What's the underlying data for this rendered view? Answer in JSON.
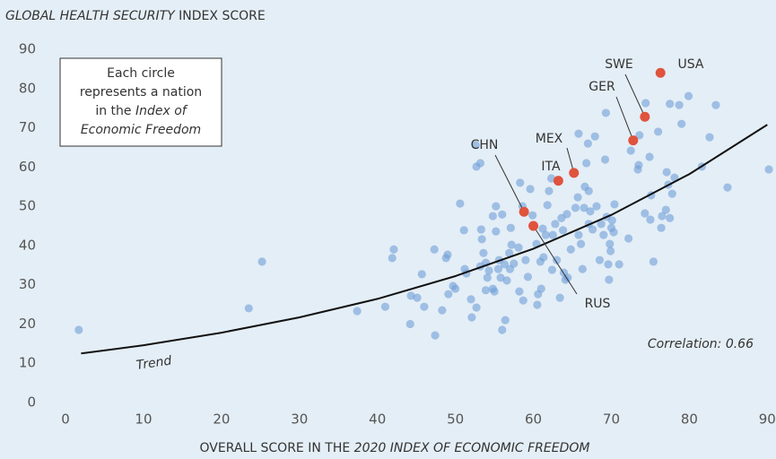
{
  "chart_data": {
    "type": "scatter",
    "title": [
      {
        "text": "GLOBAL HEALTH SECURITY",
        "italic": true
      },
      {
        "text": " INDEX SCORE",
        "italic": false
      }
    ],
    "x_label": [
      {
        "text": "OVERALL SCORE IN THE ",
        "italic": false
      },
      {
        "text": "2020 INDEX OF ECONOMIC FREEDOM",
        "italic": true
      }
    ],
    "note": [
      [
        {
          "text": "Each circle",
          "italic": false
        }
      ],
      [
        {
          "text": "represents a nation",
          "italic": false
        }
      ],
      [
        {
          "text": "in the ",
          "italic": false
        },
        {
          "text": "Index of",
          "italic": true
        }
      ],
      [
        {
          "text": "Economic Freedom",
          "italic": true
        }
      ]
    ],
    "annotation": "Correlation: 0.66",
    "xlim": [
      -1.5,
      91
    ],
    "ylim": [
      0,
      90
    ],
    "xticks": [
      0,
      10,
      20,
      30,
      40,
      50,
      60,
      70,
      80,
      90
    ],
    "yticks": [
      0,
      10,
      20,
      30,
      40,
      50,
      60,
      70,
      80,
      90
    ],
    "grid": false,
    "points": {
      "color": "#6f9fd8",
      "x": [
        1.7,
        23.5,
        25.2,
        37.4,
        41,
        41.9,
        42.1,
        44.2,
        44.3,
        45.1,
        45.7,
        46,
        47.4,
        47.3,
        48.3,
        48.8,
        49,
        49.1,
        49.7,
        50,
        50.6,
        51.1,
        51.2,
        51.4,
        52,
        52.1,
        52.6,
        52.7,
        53.2,
        52.7,
        53.2,
        53.3,
        53.4,
        53.6,
        53.9,
        53.9,
        54.1,
        54.3,
        54.8,
        54.8,
        55,
        55.2,
        55.2,
        55.5,
        55.6,
        55.8,
        56,
        56,
        56.3,
        56.4,
        56.6,
        56.9,
        57,
        57.1,
        57.2,
        57.5,
        58.1,
        58.2,
        58.3,
        58.6,
        58.7,
        59,
        59.3,
        59.6,
        59.9,
        60.4,
        60.5,
        60.6,
        61,
        60.9,
        61.2,
        61.3,
        61.6,
        61.8,
        62,
        62.3,
        62.4,
        62.5,
        62.8,
        63,
        63.4,
        63.6,
        63.8,
        63.9,
        64.1,
        64.3,
        64.4,
        64.8,
        65.4,
        65.7,
        65.8,
        65.8,
        66.1,
        66.3,
        66.5,
        66.6,
        66.8,
        67,
        67.1,
        67.1,
        67.3,
        67.6,
        67.9,
        68.1,
        68.5,
        68.7,
        69,
        69.2,
        69.3,
        69.4,
        69.6,
        69.7,
        69.8,
        69.9,
        70,
        70.1,
        70.3,
        70.4,
        71,
        72.2,
        72.5,
        73.4,
        73.5,
        73.6,
        74.3,
        74.4,
        74.9,
        75,
        75.1,
        75.4,
        76,
        76.4,
        76.5,
        77,
        77.1,
        77.3,
        77.5,
        77.5,
        77.8,
        78.1,
        78.7,
        79,
        79.9,
        81.6,
        82.6,
        83.4,
        84.9,
        90.2
      ],
      "y": [
        18.5,
        24,
        35.9,
        23.3,
        24.4,
        36.8,
        39,
        20,
        27.2,
        26.7,
        32.7,
        24.4,
        17.1,
        39,
        23.5,
        36.8,
        37.7,
        27.6,
        29.7,
        29,
        50.7,
        43.9,
        34,
        32.9,
        26.3,
        21.7,
        65.6,
        60.1,
        61,
        24.2,
        34.7,
        44.1,
        41.6,
        38.1,
        35.6,
        28.6,
        31.8,
        33.6,
        29,
        47.5,
        28.3,
        50,
        43.6,
        34,
        36.3,
        31.8,
        18.5,
        47.9,
        35.2,
        21,
        31.1,
        38.1,
        34,
        44.5,
        40.2,
        35.4,
        39.5,
        28.3,
        56,
        50,
        26,
        36.3,
        32,
        54.4,
        47.7,
        40.4,
        24.9,
        27.6,
        29,
        35.9,
        44.3,
        37,
        42.7,
        50.3,
        53.9,
        57.1,
        33.8,
        42.7,
        45.5,
        36.3,
        26.7,
        47,
        43.9,
        33.1,
        31.3,
        48,
        31.8,
        39,
        49.6,
        52.3,
        42.7,
        68.5,
        40.4,
        34,
        49.6,
        55,
        61,
        66,
        45.5,
        53.9,
        48.7,
        44.1,
        67.8,
        50,
        36.3,
        45.5,
        42.7,
        61.9,
        73.8,
        47.3,
        35.2,
        31.3,
        40.4,
        38.6,
        44.5,
        46.4,
        43.4,
        50.5,
        35.2,
        41.8,
        64.2,
        59.4,
        60.5,
        68.1,
        48.2,
        76.3,
        62.6,
        46.6,
        52.8,
        35.9,
        69,
        44.5,
        47.5,
        49.1,
        58.7,
        55.5,
        76.1,
        47,
        53.2,
        57.3,
        75.8,
        71,
        78.1,
        60.1,
        67.6,
        75.8,
        54.8,
        59.4
      ]
    },
    "highlight_color": "#e0533d",
    "highlights": [
      {
        "label": "USA",
        "x": 76.3,
        "y": 84
      },
      {
        "label": "SWE",
        "x": 74.3,
        "y": 72.8
      },
      {
        "label": "GER",
        "x": 72.8,
        "y": 66.8
      },
      {
        "label": "MEX",
        "x": 65.2,
        "y": 58.5
      },
      {
        "label": "ITA",
        "x": 63.2,
        "y": 56.5
      },
      {
        "label": "CHN",
        "x": 58.8,
        "y": 48.6
      },
      {
        "label": "RUS",
        "x": 60,
        "y": 45
      }
    ],
    "trend": {
      "label": "Trend",
      "color": "#111111",
      "x": [
        2,
        10,
        20,
        30,
        40,
        50,
        60,
        70,
        80,
        90
      ],
      "values": [
        12.5,
        14.6,
        17.8,
        21.7,
        26.4,
        32.2,
        39.2,
        47.8,
        58.2,
        70.8
      ]
    }
  }
}
